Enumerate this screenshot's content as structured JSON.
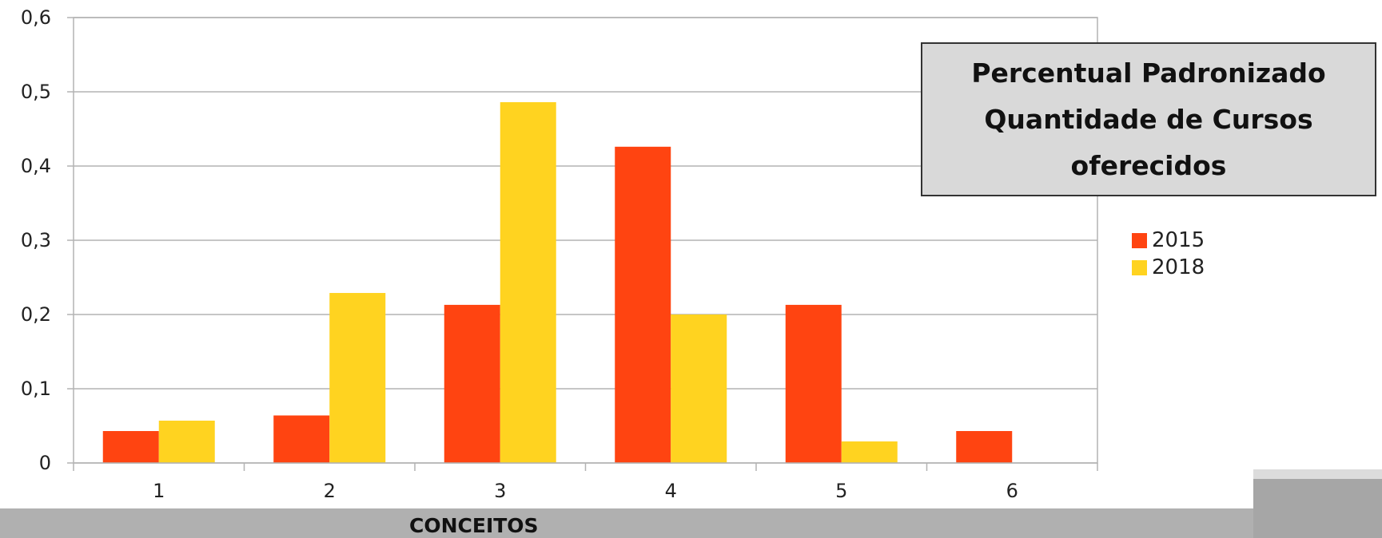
{
  "chart_data": {
    "type": "bar",
    "categories": [
      "1",
      "2",
      "3",
      "4",
      "5",
      "6"
    ],
    "series": [
      {
        "name": "2015",
        "color": "#ff4411",
        "values": [
          0.043,
          0.064,
          0.213,
          0.426,
          0.213,
          0.043
        ]
      },
      {
        "name": "2018",
        "color": "#ffd320",
        "values": [
          0.057,
          0.229,
          0.486,
          0.2,
          0.029,
          0.0
        ]
      }
    ],
    "title_lines": [
      "Percentual Padronizado",
      "Quantidade de Cursos",
      "oferecidos"
    ],
    "xlabel": "CONCEITOS",
    "ylabel": "",
    "ylim": [
      0,
      0.6
    ],
    "yticks": [
      0,
      0.1,
      0.2,
      0.3,
      0.4,
      0.5,
      0.6
    ],
    "ytick_labels": [
      "0",
      "0,1",
      "0,2",
      "0,3",
      "0,4",
      "0,5",
      "0,6"
    ],
    "grid": true,
    "legend_position": "right"
  }
}
